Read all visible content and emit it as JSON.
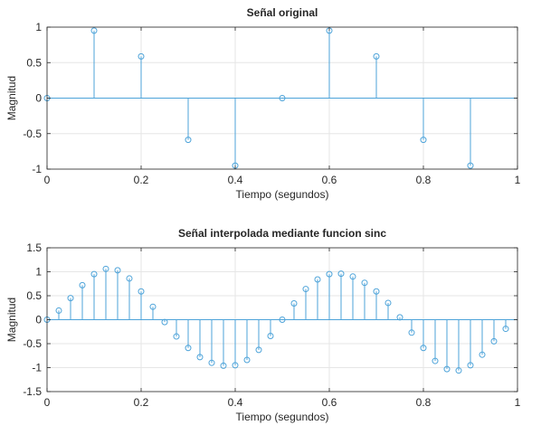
{
  "chart_data": [
    {
      "type": "stem",
      "title": "Señal original",
      "xlabel": "Tiempo (segundos)",
      "ylabel": "Magnitud",
      "xlim": [
        0,
        1
      ],
      "ylim": [
        -1,
        1
      ],
      "xticks": [
        0,
        0.2,
        0.4,
        0.6,
        0.8,
        1
      ],
      "xtick_labels": [
        "0",
        "0.2",
        "0.4",
        "0.6",
        "0.8",
        "1"
      ],
      "yticks": [
        -1,
        -0.5,
        0,
        0.5,
        1
      ],
      "ytick_labels": [
        "-1",
        "-0.5",
        "0",
        "0.5",
        "1"
      ],
      "grid": true,
      "x": [
        0,
        0.1,
        0.2,
        0.3,
        0.4,
        0.5,
        0.6,
        0.7,
        0.8,
        0.9
      ],
      "y": [
        0,
        0.951,
        0.588,
        -0.588,
        -0.951,
        0,
        0.951,
        0.588,
        -0.588,
        -0.951
      ],
      "color": "#4da3d9"
    },
    {
      "type": "stem",
      "title": "Señal interpolada mediante funcion sinc",
      "xlabel": "Tiempo (segundos)",
      "ylabel": "Magnitud",
      "xlim": [
        0,
        1
      ],
      "ylim": [
        -1.5,
        1.5
      ],
      "xticks": [
        0,
        0.2,
        0.4,
        0.6,
        0.8,
        1
      ],
      "xtick_labels": [
        "0",
        "0.2",
        "0.4",
        "0.6",
        "0.8",
        "1"
      ],
      "yticks": [
        -1.5,
        -1,
        -0.5,
        0,
        0.5,
        1,
        1.5
      ],
      "ytick_labels": [
        "-1.5",
        "-1",
        "-0.5",
        "0",
        "0.5",
        "1",
        "1.5"
      ],
      "grid": true,
      "x": [
        0,
        0.025,
        0.05,
        0.075,
        0.1,
        0.125,
        0.15,
        0.175,
        0.2,
        0.225,
        0.25,
        0.275,
        0.3,
        0.325,
        0.35,
        0.375,
        0.4,
        0.425,
        0.45,
        0.475,
        0.5,
        0.525,
        0.55,
        0.575,
        0.6,
        0.625,
        0.65,
        0.675,
        0.7,
        0.725,
        0.75,
        0.775,
        0.8,
        0.825,
        0.85,
        0.875,
        0.9,
        0.925,
        0.95,
        0.975
      ],
      "y": [
        0,
        0.19,
        0.45,
        0.72,
        0.95,
        1.06,
        1.03,
        0.86,
        0.59,
        0.27,
        -0.05,
        -0.35,
        -0.59,
        -0.78,
        -0.9,
        -0.96,
        -0.95,
        -0.84,
        -0.63,
        -0.34,
        0,
        0.34,
        0.64,
        0.84,
        0.95,
        0.96,
        0.9,
        0.77,
        0.59,
        0.35,
        0.05,
        -0.27,
        -0.59,
        -0.86,
        -1.03,
        -1.06,
        -0.95,
        -0.73,
        -0.45,
        -0.19
      ],
      "color": "#4da3d9"
    }
  ]
}
